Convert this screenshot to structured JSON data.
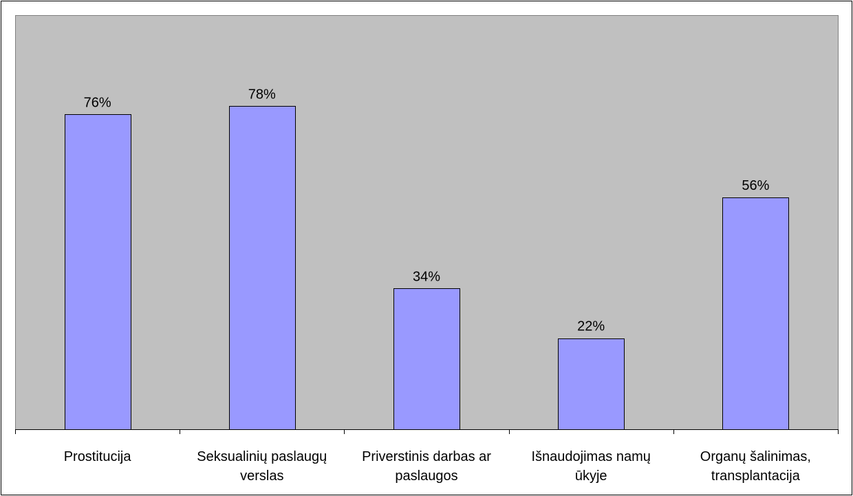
{
  "chart_data": {
    "type": "bar",
    "categories": [
      [
        "Prostitucija"
      ],
      [
        "Seksualinių paslaugų",
        "verslas"
      ],
      [
        "Priverstinis darbas ar",
        "paslaugos"
      ],
      [
        "Išnaudojimas namų",
        "ūkyje"
      ],
      [
        "Organų šalinimas,",
        "transplantacija"
      ]
    ],
    "values": [
      76,
      78,
      34,
      22,
      56
    ],
    "value_labels": [
      "76%",
      "78%",
      "34%",
      "22%",
      "56%"
    ],
    "unit": "%",
    "ylim": [
      0,
      100
    ],
    "grid": false,
    "legend": "none",
    "title": "",
    "xlabel": "",
    "ylabel": "",
    "colors": {
      "bar_fill": "#9999ff",
      "bar_stroke": "#000000",
      "plot_background": "#c0c0c0",
      "page_background": "#ffffff",
      "border": "#000000"
    }
  }
}
